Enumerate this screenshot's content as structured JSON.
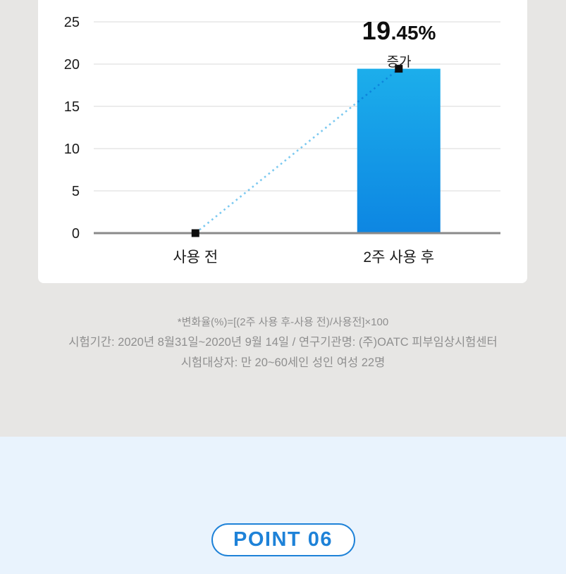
{
  "chart_data": {
    "type": "bar",
    "title": "",
    "xlabel": "",
    "ylabel": "",
    "categories": [
      "사용 전",
      "2주 사용 후"
    ],
    "values": [
      0,
      19.45
    ],
    "ylim": [
      0,
      25
    ],
    "yticks": [
      0,
      5,
      10,
      15,
      20,
      25
    ],
    "grid": true,
    "legend": "none",
    "connector_line": {
      "style": "dotted",
      "from_index": 0,
      "to_index": 1
    },
    "annotation": {
      "value_big": "19",
      "value_small": ".45%",
      "sublabel": "증가",
      "full_value": "19.45% 증가"
    },
    "colors": {
      "bar_gradient_top": "#1caeeb",
      "bar_gradient_bottom": "#0d86e2",
      "dotted_line": "#7cc9f0",
      "marker": "#0d0d0d",
      "gridline": "#ececec",
      "axis": "#8a8a8a",
      "tick_label": "#1b1b1b"
    }
  },
  "footnotes": [
    "*변화율(%)=[(2주 사용 후-사용 전)/사용전]×100",
    "시험기간: 2020년 8월31일~2020년 9월 14일 / 연구기관명: (주)OATC 피부임상시험센터",
    "시험대상자: 만 20~60세인 성인 여성 22명"
  ],
  "bottom": {
    "badge_label": "POINT 06"
  },
  "colors": {
    "page_bg": "#e7e6e4",
    "card_bg": "#ffffff",
    "bottom_bg": "#e9f3fd",
    "accent_blue": "#1e82d8",
    "footnote_gray": "#8f8f8f"
  }
}
